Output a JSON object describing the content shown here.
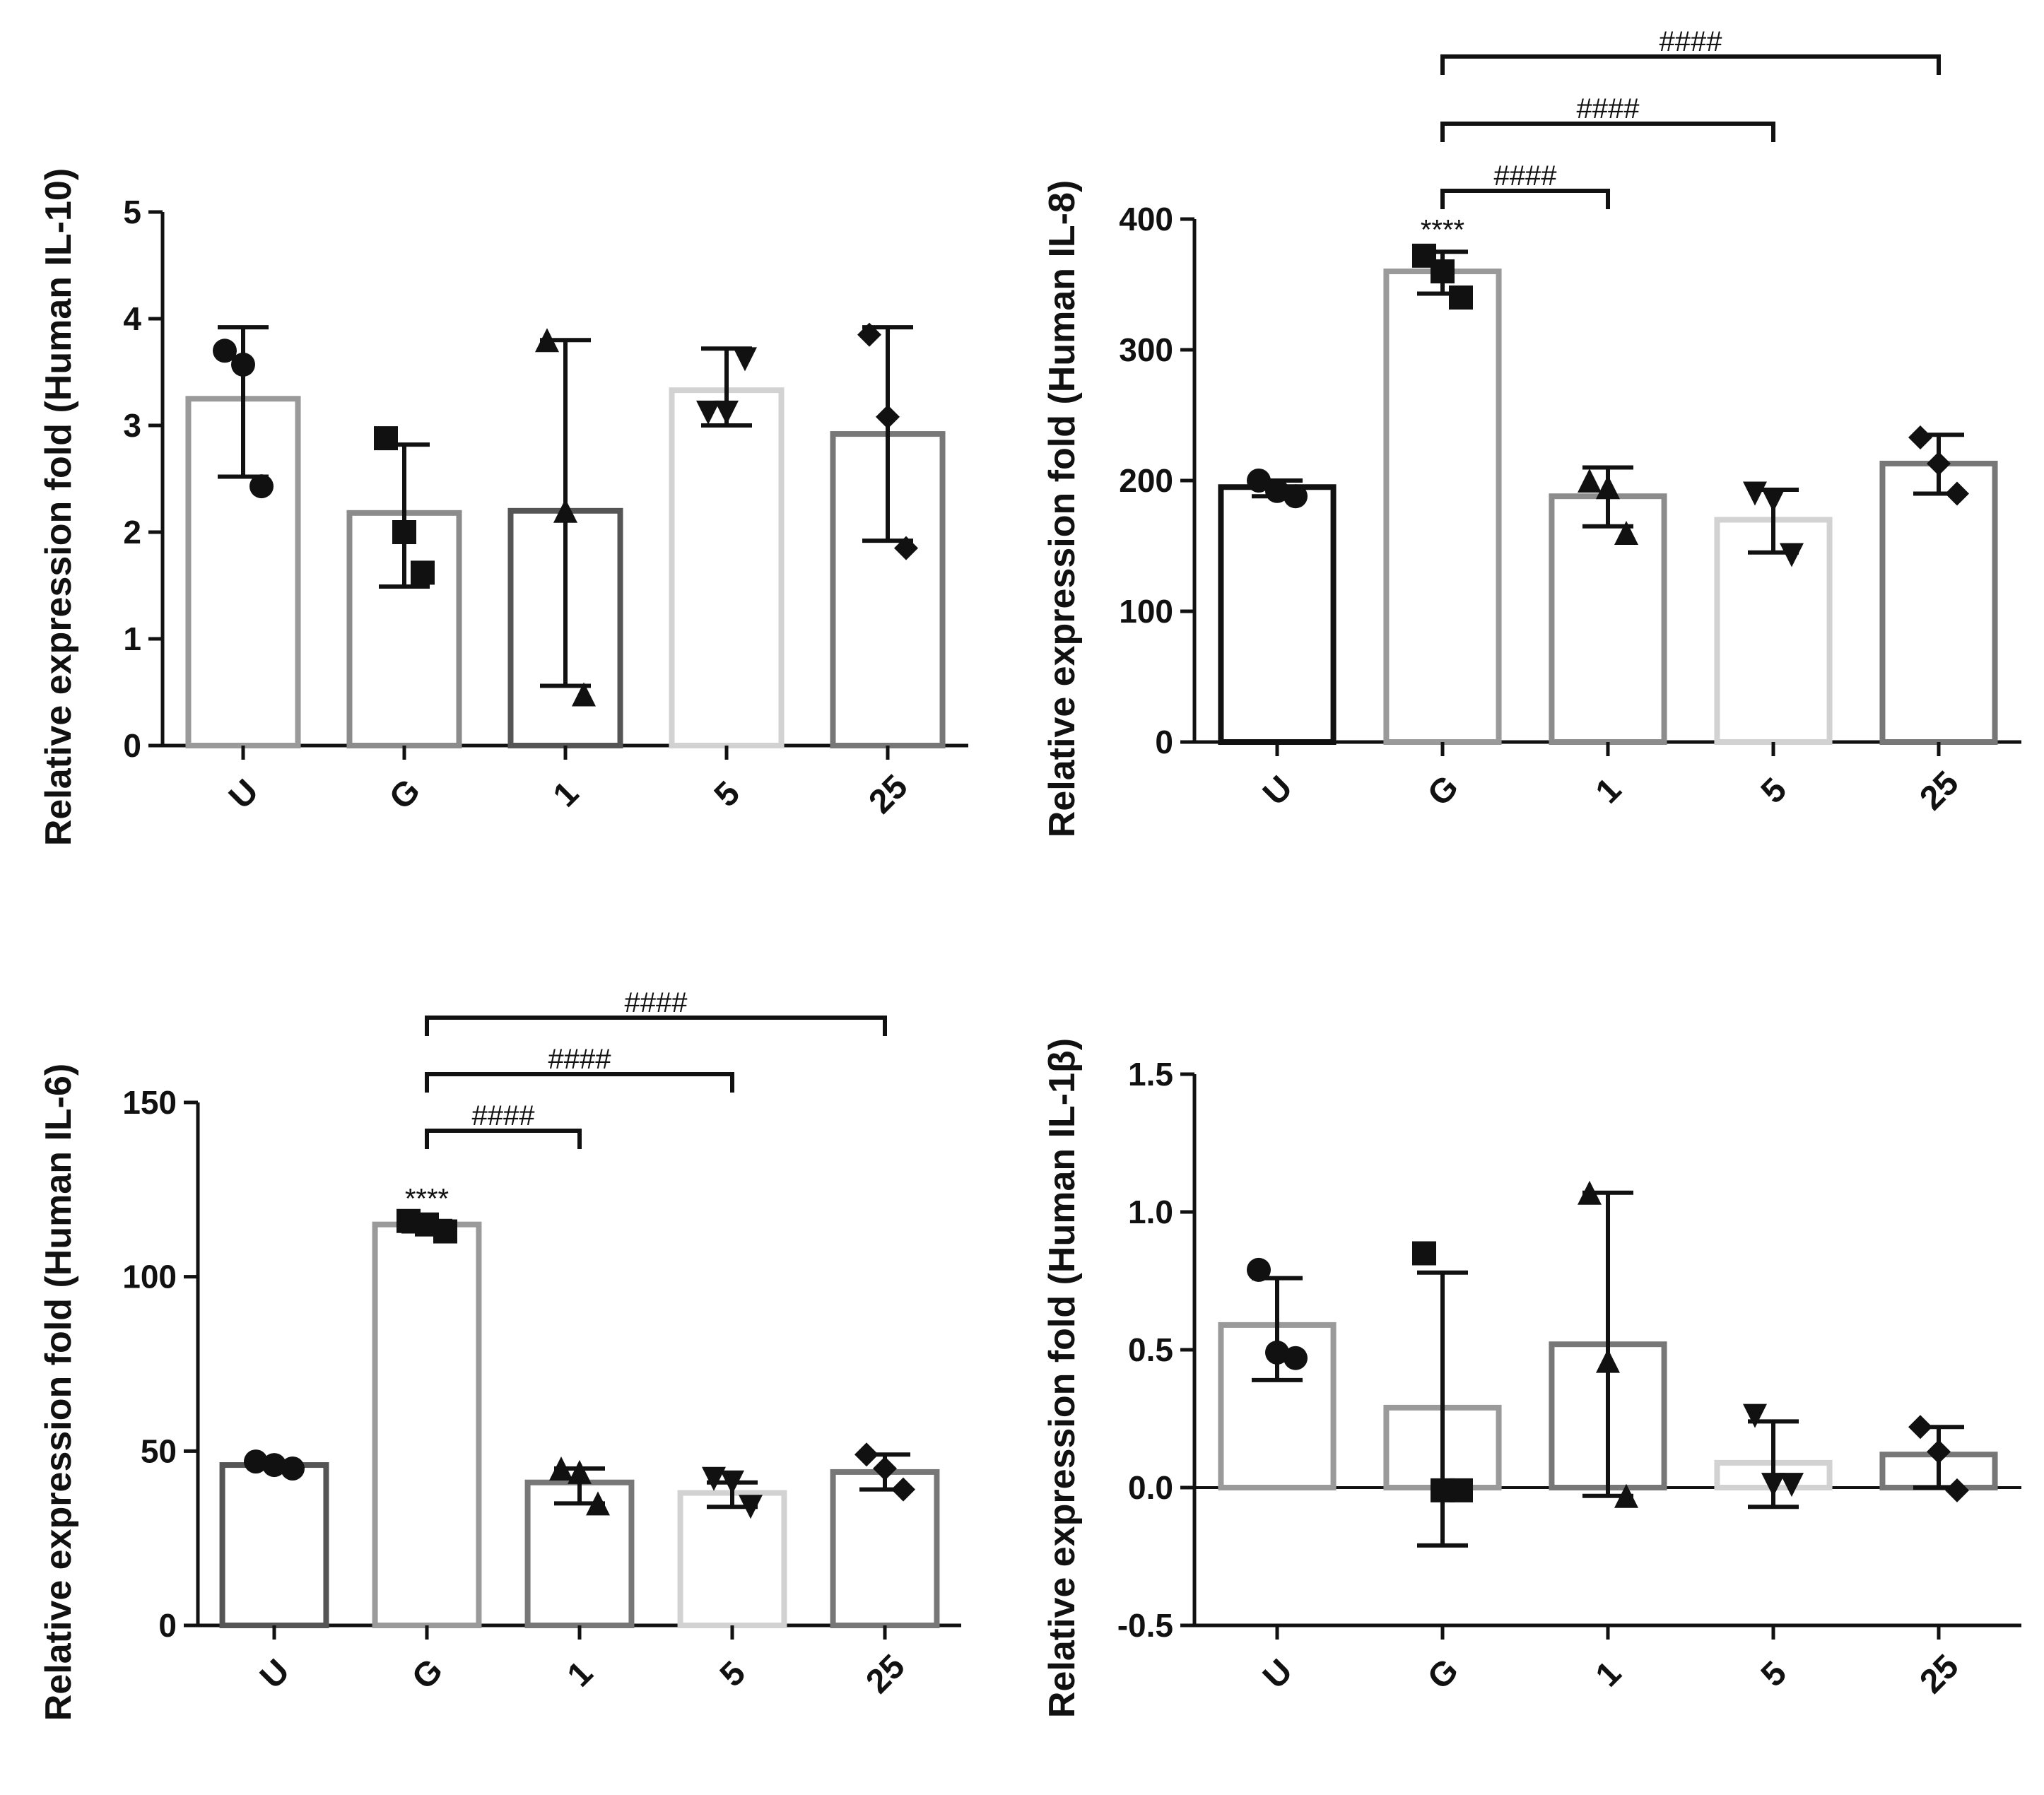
{
  "chart_data": [
    {
      "type": "bar",
      "panel": "top-left",
      "title": "",
      "ylabel": "Relative expression fold (Human IL-10)",
      "xlabel": "",
      "categories": [
        "U",
        "G",
        "1",
        "5",
        "25"
      ],
      "ylim": [
        0,
        5
      ],
      "yticks": [
        "0",
        "1",
        "2",
        "3",
        "4",
        "5"
      ],
      "bar_colors": [
        "#9a9a9a",
        "#8c8c8c",
        "#555555",
        "#d2d2d2",
        "#777777"
      ],
      "marker_shapes": [
        "circle",
        "square",
        "triangle-up",
        "triangle-down",
        "diamond"
      ],
      "values": [
        3.25,
        2.18,
        2.2,
        3.33,
        2.92
      ],
      "error_low": [
        2.52,
        1.49,
        0.56,
        3.0,
        1.92
      ],
      "error_high": [
        3.92,
        2.82,
        3.8,
        3.72,
        3.92
      ],
      "points": [
        [
          3.7,
          3.57,
          2.43
        ],
        [
          2.88,
          2.0,
          1.62
        ],
        [
          3.8,
          2.2,
          0.48
        ],
        [
          3.12,
          3.12,
          3.62
        ],
        [
          3.85,
          3.08,
          1.85
        ]
      ],
      "significance": {
        "stars": [],
        "brackets": []
      }
    },
    {
      "type": "bar",
      "panel": "top-right",
      "title": "",
      "ylabel": "Relative expression fold (Human IL-8)",
      "xlabel": "",
      "categories": [
        "U",
        "G",
        "1",
        "5",
        "25"
      ],
      "ylim": [
        0,
        400
      ],
      "yticks": [
        "0",
        "100",
        "200",
        "300",
        "400"
      ],
      "bar_colors": [
        "#111111",
        "#9a9a9a",
        "#8c8c8c",
        "#d2d2d2",
        "#777777"
      ],
      "marker_shapes": [
        "circle",
        "square",
        "triangle-up",
        "triangle-down",
        "diamond"
      ],
      "values": [
        195,
        360,
        188,
        170,
        213
      ],
      "error_low": [
        188,
        343,
        165,
        145,
        190
      ],
      "error_high": [
        200,
        375,
        210,
        193,
        235
      ],
      "points": [
        [
          200,
          192,
          188
        ],
        [
          372,
          360,
          340
        ],
        [
          200,
          195,
          160
        ],
        [
          190,
          185,
          143
        ],
        [
          233,
          213,
          190
        ]
      ],
      "significance": {
        "stars": [
          {
            "category": "G",
            "label": "****"
          }
        ],
        "brackets": [
          {
            "from": "G",
            "to": "1",
            "label": "####"
          },
          {
            "from": "G",
            "to": "5",
            "label": "####"
          },
          {
            "from": "G",
            "to": "25",
            "label": "####"
          }
        ]
      }
    },
    {
      "type": "bar",
      "panel": "bottom-left",
      "title": "",
      "ylabel": "Relative expression fold (Human IL-6)",
      "xlabel": "",
      "categories": [
        "U",
        "G",
        "1",
        "5",
        "25"
      ],
      "ylim": [
        0,
        150
      ],
      "yticks": [
        "0",
        "50",
        "100",
        "150"
      ],
      "bar_colors": [
        "#555555",
        "#9a9a9a",
        "#777777",
        "#d2d2d2",
        "#777777"
      ],
      "marker_shapes": [
        "circle",
        "square",
        "triangle-up",
        "triangle-down",
        "diamond"
      ],
      "values": [
        46,
        115,
        41,
        38,
        44
      ],
      "error_low": [
        45,
        113,
        35,
        34,
        39
      ],
      "error_high": [
        47,
        116,
        45,
        41,
        49
      ],
      "points": [
        [
          47,
          46,
          45
        ],
        [
          116,
          115,
          113
        ],
        [
          45,
          44,
          35
        ],
        [
          42,
          41,
          34
        ],
        [
          49,
          45,
          39
        ]
      ],
      "significance": {
        "stars": [
          {
            "category": "G",
            "label": "****"
          }
        ],
        "brackets": [
          {
            "from": "G",
            "to": "1",
            "label": "####"
          },
          {
            "from": "G",
            "to": "5",
            "label": "####"
          },
          {
            "from": "G",
            "to": "25",
            "label": "####"
          }
        ]
      }
    },
    {
      "type": "bar",
      "panel": "bottom-right",
      "title": "",
      "ylabel": "Relative expression fold (Human IL-1β)",
      "xlabel": "",
      "categories": [
        "U",
        "G",
        "1",
        "5",
        "25"
      ],
      "ylim": [
        -0.5,
        1.5
      ],
      "yticks": [
        "-0.5",
        "0.0",
        "0.5",
        "1.0",
        "1.5"
      ],
      "zero_line": true,
      "bar_colors": [
        "#9a9a9a",
        "#9a9a9a",
        "#777777",
        "#d2d2d2",
        "#777777"
      ],
      "marker_shapes": [
        "circle",
        "square",
        "triangle-up",
        "triangle-down",
        "diamond"
      ],
      "values": [
        0.59,
        0.29,
        0.52,
        0.09,
        0.12
      ],
      "error_low": [
        0.39,
        -0.21,
        -0.03,
        -0.07,
        0.0
      ],
      "error_high": [
        0.76,
        0.78,
        1.07,
        0.24,
        0.22
      ],
      "points": [
        [
          0.79,
          0.49,
          0.47
        ],
        [
          0.85,
          -0.01,
          -0.01
        ],
        [
          1.07,
          0.46,
          -0.03
        ],
        [
          0.26,
          0.01,
          0.01
        ],
        [
          0.22,
          0.13,
          -0.01
        ]
      ],
      "significance": {
        "stars": [],
        "brackets": []
      }
    }
  ]
}
